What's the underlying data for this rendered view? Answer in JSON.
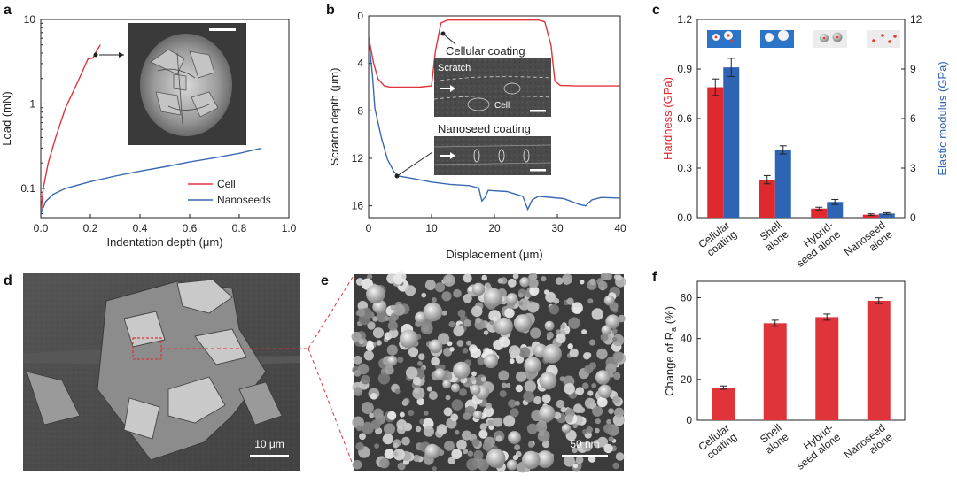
{
  "panel_labels": [
    "a",
    "b",
    "c",
    "d",
    "e",
    "f"
  ],
  "chart_data": [
    {
      "panel": "a",
      "type": "line",
      "xlabel": "Indentation depth (μm)",
      "ylabel": "Load (mN)",
      "xlim": [
        0,
        1.0
      ],
      "ylim": [
        0.045,
        10
      ],
      "yscale": "log",
      "x_ticks": [
        "0.0",
        "0.2",
        "0.4",
        "0.6",
        "0.8",
        "1.0"
      ],
      "y_ticks": [
        "0.1",
        "1",
        "10"
      ],
      "legend_position": "bottom-right",
      "series": [
        {
          "name": "Cell",
          "color": "#e0343b",
          "x": [
            0,
            0.01,
            0.03,
            0.06,
            0.1,
            0.14,
            0.17,
            0.19,
            0.21,
            0.22,
            0.24
          ],
          "y": [
            0.05,
            0.1,
            0.2,
            0.4,
            0.9,
            1.6,
            2.5,
            3.4,
            3.5,
            4.0,
            5.0
          ]
        },
        {
          "name": "Nanoseeds",
          "color": "#3a68b3",
          "x": [
            0,
            0.02,
            0.05,
            0.1,
            0.2,
            0.3,
            0.4,
            0.5,
            0.6,
            0.7,
            0.8,
            0.89
          ],
          "y": [
            0.05,
            0.07,
            0.085,
            0.1,
            0.12,
            0.14,
            0.16,
            0.18,
            0.205,
            0.23,
            0.26,
            0.3
          ]
        }
      ]
    },
    {
      "panel": "b",
      "type": "line",
      "xlabel": "Displacement (μm)",
      "ylabel": "Scratch depth (μm)",
      "xlim": [
        0,
        40
      ],
      "ylim": [
        17,
        0
      ],
      "x_ticks": [
        "0",
        "10",
        "20",
        "30",
        "40"
      ],
      "y_ticks": [
        "0",
        "4",
        "8",
        "12",
        "16"
      ],
      "insets": [
        {
          "title": "Cellular coating",
          "labels": [
            "Scratch",
            "Cell"
          ]
        },
        {
          "title": "Nanoseed coating",
          "labels": []
        }
      ],
      "series": [
        {
          "name": "Cellular coating",
          "color": "#e0343b",
          "x": [
            0,
            0.8,
            1.5,
            2.5,
            3.5,
            5,
            8,
            10,
            10.6,
            11.5,
            12.5,
            20,
            27,
            28,
            29,
            29.6,
            30.5,
            33,
            36,
            40
          ],
          "y": [
            1.8,
            4.0,
            5.3,
            5.9,
            6.0,
            6.0,
            6.0,
            5.9,
            3.0,
            0.6,
            0.35,
            0.35,
            0.35,
            0.5,
            2.5,
            5.5,
            5.85,
            5.9,
            5.9,
            5.9
          ]
        },
        {
          "name": "Nanoseed coating",
          "color": "#3a68b3",
          "x": [
            0,
            0.6,
            1,
            2,
            3,
            4,
            4.8,
            6,
            8,
            10,
            13,
            16,
            17.5,
            18,
            18.5,
            19,
            22,
            24.5,
            25.3,
            26,
            27,
            31,
            33.5,
            34.5,
            35.5,
            37,
            40
          ],
          "y": [
            1.8,
            5,
            7.8,
            10.2,
            12.1,
            13.1,
            13.5,
            13.6,
            13.8,
            14.0,
            14.2,
            14.3,
            14.5,
            15.6,
            15.3,
            14.7,
            14.8,
            15.2,
            16.3,
            15.5,
            15.2,
            15.4,
            15.9,
            16.0,
            15.5,
            15.3,
            15.35
          ]
        }
      ]
    },
    {
      "panel": "c",
      "type": "bar",
      "categories": [
        "Cellular coating",
        "Shell alone",
        "Hybrid-seed alone",
        "Nanoseed alone"
      ],
      "category_lines": [
        [
          "Cellular",
          "coating"
        ],
        [
          "Shell",
          "alone"
        ],
        [
          "Hybrid-",
          "seed alone"
        ],
        [
          "Nanoseed",
          "alone"
        ]
      ],
      "ylabel": "Hardness (GPa)",
      "y2label": "Elastic modulus (GPa)",
      "ylim": [
        0,
        1.2
      ],
      "y2lim": [
        0,
        12
      ],
      "y_ticks": [
        "0.0",
        "0.3",
        "0.6",
        "0.9",
        "1.2"
      ],
      "y2_ticks": [
        "0",
        "3",
        "6",
        "9",
        "12"
      ],
      "series": [
        {
          "name": "Hardness (GPa)",
          "axis": "left",
          "color": "#e0282f",
          "values": [
            0.79,
            0.23,
            0.055,
            0.018
          ],
          "errors": [
            0.05,
            0.025,
            0.008,
            0.005
          ]
        },
        {
          "name": "Elastic modulus (GPa)",
          "axis": "right",
          "color": "#2f64b5",
          "values": [
            9.1,
            4.1,
            0.95,
            0.25
          ],
          "errors": [
            0.55,
            0.25,
            0.15,
            0.05
          ]
        }
      ]
    },
    {
      "panel": "f",
      "type": "bar",
      "categories": [
        "Cellular coating",
        "Shell alone",
        "Hybrid-seed alone",
        "Nanoseed alone"
      ],
      "category_lines": [
        [
          "Cellular",
          "coating"
        ],
        [
          "Shell",
          "alone"
        ],
        [
          "Hybrid-",
          "seed alone"
        ],
        [
          "Nanoseed",
          "alone"
        ]
      ],
      "ylabel": "Change of R_a (%)",
      "ylim": [
        0,
        68
      ],
      "y_ticks": [
        "0",
        "20",
        "40",
        "60"
      ],
      "series": [
        {
          "name": "Change of Ra (%)",
          "color": "#e0343b",
          "values": [
            16,
            47.5,
            50.5,
            58.5
          ],
          "errors": [
            0.8,
            1.5,
            1.5,
            1.4
          ]
        }
      ]
    }
  ],
  "micrographs": {
    "a_inset": {
      "scale": ""
    },
    "d": {
      "scale": "10 μm"
    },
    "e": {
      "scale": "50 nm"
    }
  },
  "colors": {
    "cell": "#e0343b",
    "nanoseed": "#3a68b3",
    "hardness": "#e0282f",
    "modulus": "#2f64b5"
  }
}
